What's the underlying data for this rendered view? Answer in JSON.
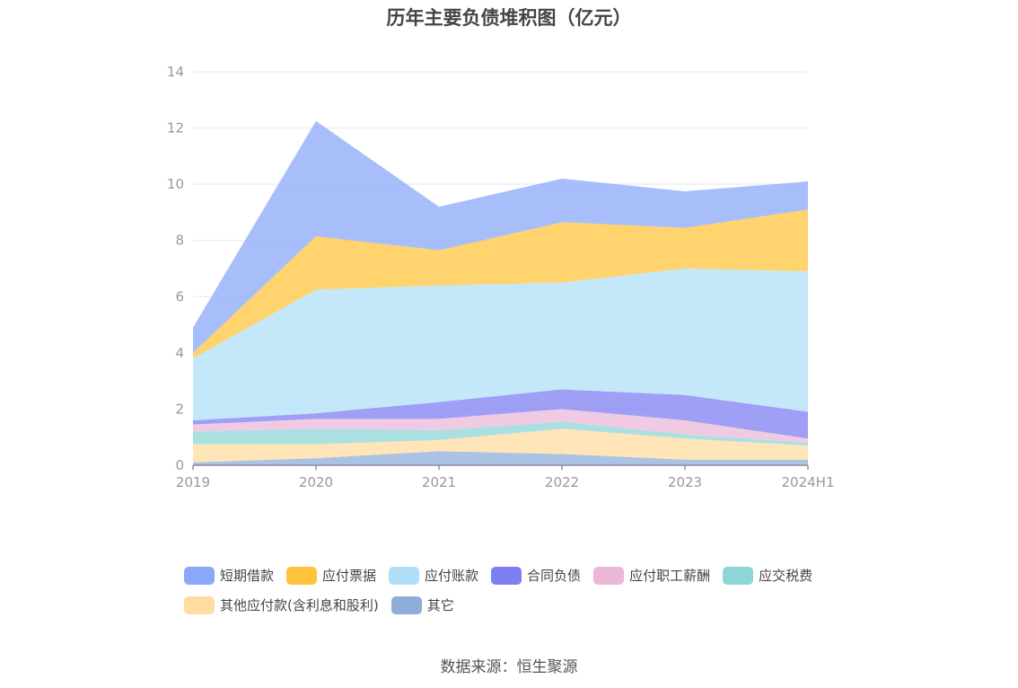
{
  "chart_data": {
    "type": "area",
    "stacked": true,
    "title": "历年主要负债堆积图（亿元）",
    "xlabel": "",
    "ylabel": "",
    "categories": [
      "2019",
      "2020",
      "2021",
      "2022",
      "2023",
      "2024H1"
    ],
    "ylim": [
      0,
      14
    ],
    "yticks": [
      "0",
      "2",
      "4",
      "6",
      "8",
      "10",
      "12",
      "14"
    ],
    "grid": true,
    "legend_position": "bottom",
    "series": [
      {
        "name": "其它",
        "color": "#8EADD9",
        "values": [
          0.1,
          0.25,
          0.5,
          0.4,
          0.2,
          0.2
        ]
      },
      {
        "name": "其他应付款(含利息和股利)",
        "color": "#FFDCA0",
        "values": [
          0.65,
          0.5,
          0.4,
          0.9,
          0.75,
          0.5
        ]
      },
      {
        "name": "应交税费",
        "color": "#8DD6D8",
        "values": [
          0.45,
          0.55,
          0.35,
          0.25,
          0.15,
          0.1
        ]
      },
      {
        "name": "应付职工薪酬",
        "color": "#EBB8D8",
        "values": [
          0.25,
          0.35,
          0.4,
          0.45,
          0.5,
          0.15
        ]
      },
      {
        "name": "合同负债",
        "color": "#7E7FF2",
        "values": [
          0.15,
          0.2,
          0.6,
          0.7,
          0.9,
          0.95
        ]
      },
      {
        "name": "应付账款",
        "color": "#B0E0F8",
        "values": [
          2.2,
          4.4,
          4.15,
          3.8,
          4.5,
          5.0
        ]
      },
      {
        "name": "应付票据",
        "color": "#FFC43D",
        "values": [
          0.2,
          1.9,
          1.25,
          2.15,
          1.45,
          2.2
        ]
      },
      {
        "name": "短期借款",
        "color": "#8AA8FA",
        "values": [
          0.9,
          4.1,
          1.55,
          1.55,
          1.3,
          1.0
        ]
      }
    ]
  },
  "legend_order": [
    "短期借款",
    "应付票据",
    "应付账款",
    "合同负债",
    "应付职工薪酬",
    "应交税费",
    "其他应付款(含利息和股利)",
    "其它"
  ],
  "source": "数据来源：恒生聚源"
}
